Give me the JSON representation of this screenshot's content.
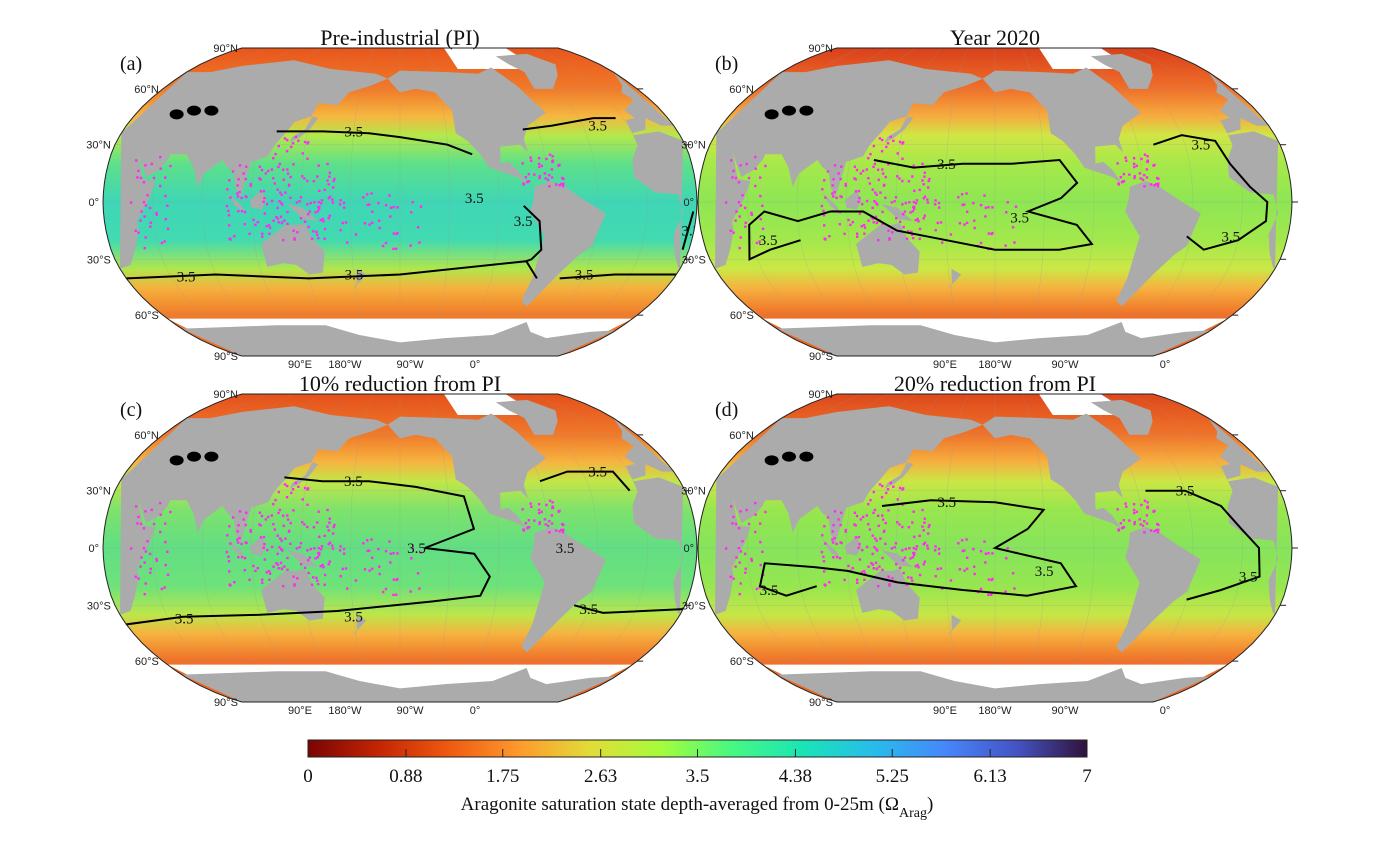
{
  "figure": {
    "panels": [
      {
        "letter": "(a)",
        "title": "Pre-industrial (PI)",
        "ocean_colors": [
          "#e8561c",
          "#f07a2a",
          "#f5b640",
          "#b5e84a",
          "#5ee08a",
          "#3fd6b6",
          "#42dab0",
          "#b0e64c",
          "#f5b23e",
          "#f07a2a",
          "#ea6a25"
        ]
      },
      {
        "letter": "(b)",
        "title": "Year 2020",
        "ocean_colors": [
          "#d9401a",
          "#ef702a",
          "#f6ac40",
          "#d0e645",
          "#a6e84a",
          "#8ee654",
          "#a2e84c",
          "#cbe846",
          "#f6b240",
          "#ef7028",
          "#e9601f"
        ]
      },
      {
        "letter": "(c)",
        "title": "10% reduction from PI",
        "ocean_colors": [
          "#e4501c",
          "#f07a2a",
          "#f6b440",
          "#c2e648",
          "#7ee26c",
          "#62de84",
          "#6ee27a",
          "#bde64a",
          "#f6b240",
          "#ef7028",
          "#ea6522"
        ]
      },
      {
        "letter": "(d)",
        "title": "20% reduction from PI",
        "ocean_colors": [
          "#dd481b",
          "#ef742a",
          "#f6b040",
          "#cbe646",
          "#98e64e",
          "#86e45c",
          "#96e650",
          "#c6e647",
          "#f6b240",
          "#ef7028",
          "#e9621f"
        ]
      }
    ],
    "lat_labels": [
      "90°N",
      "60°N",
      "30°N",
      "0°",
      "30°S",
      "60°S",
      "90°S"
    ],
    "lon_labels": [
      "90°E",
      "180°W",
      "90°W",
      "0°"
    ],
    "contour_level": "3.5",
    "colors": {
      "land": "#ababab",
      "ice": "#ffffff",
      "reef_points": "#ff2bf0",
      "lakes": "#000000",
      "contour": "#000000"
    },
    "colorbar": {
      "ticks": [
        "0",
        "0.88",
        "1.75",
        "2.63",
        "3.5",
        "4.38",
        "5.25",
        "6.13",
        "7"
      ],
      "range": [
        0,
        7
      ],
      "label": "Aragonite saturation state depth-averaged from 0-25m (Ω",
      "label_sub": "Arag",
      "label_end": ")",
      "colormap": [
        "#7a0403",
        "#c42503",
        "#ef5a11",
        "#fe9b2d",
        "#e1dd37",
        "#a4fc3b",
        "#46f884",
        "#1ae4b6",
        "#28bceb",
        "#4686fb",
        "#4454c4",
        "#30123b"
      ]
    }
  }
}
